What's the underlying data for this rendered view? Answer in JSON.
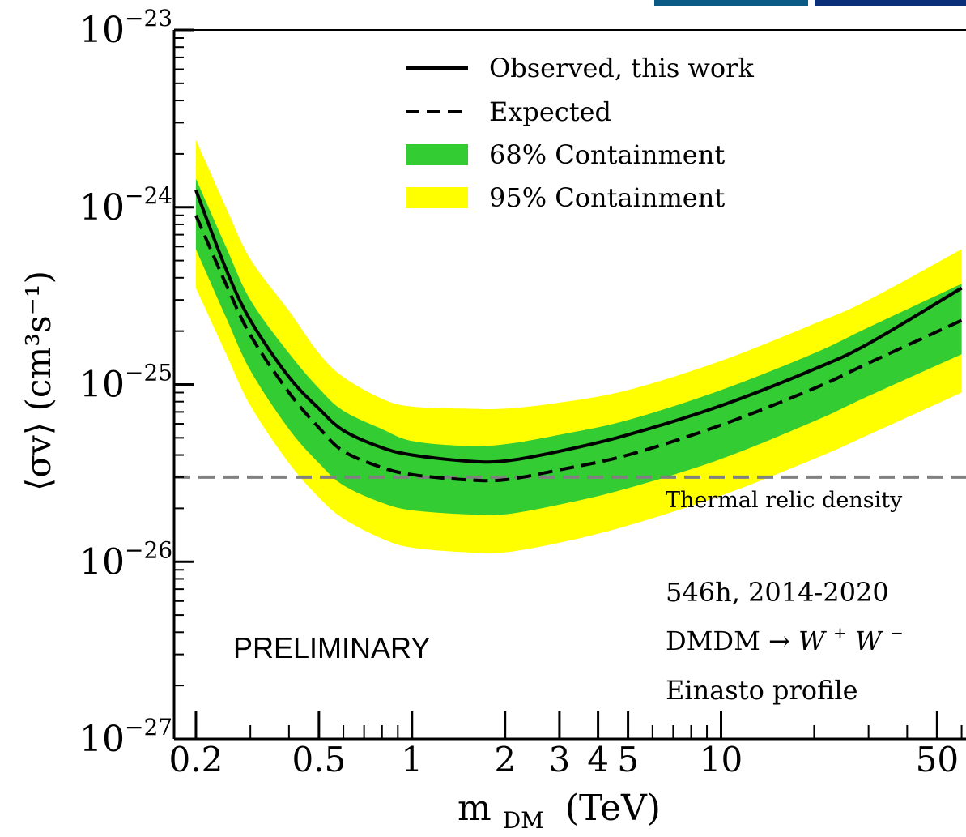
{
  "chart_data": {
    "type": "line",
    "xlabel": "m",
    "xlabel_sub": "DM",
    "xlabel_unit": "(TeV)",
    "ylabel": "⟨σv⟩ (cm³s⁻¹)",
    "xscale": "log",
    "yscale": "log",
    "xlim": [
      0.17,
      62
    ],
    "ylim": [
      1e-27,
      1e-23
    ],
    "x_ticks": [
      0.2,
      0.5,
      1,
      2,
      3,
      4,
      5,
      10,
      50
    ],
    "x_tick_labels": [
      "0.2",
      "0.5",
      "1",
      "2",
      "3",
      "4",
      "5",
      "10",
      "50"
    ],
    "y_ticks": [
      1e-27,
      1e-26,
      1e-25,
      1e-24,
      1e-23
    ],
    "y_tick_labels": [
      {
        "base": "10",
        "exp": "−27"
      },
      {
        "base": "10",
        "exp": "−26"
      },
      {
        "base": "10",
        "exp": "−25"
      },
      {
        "base": "10",
        "exp": "−24"
      },
      {
        "base": "10",
        "exp": "−23"
      }
    ],
    "x": [
      0.2,
      0.25,
      0.3,
      0.4,
      0.5,
      0.6,
      0.8,
      1,
      1.5,
      2,
      3,
      5,
      10,
      20,
      30,
      60
    ],
    "series": [
      {
        "name": "Observed, this work",
        "style": "solid",
        "color": "#000000",
        "values": [
          1.25e-24,
          4.5e-25,
          2.3e-25,
          1.1e-25,
          7.3e-26,
          5.5e-26,
          4.4e-26,
          4e-26,
          3.7e-26,
          3.7e-26,
          4.2e-26,
          5.2e-26,
          7.6e-26,
          1.22e-25,
          1.7e-25,
          3.5e-25
        ]
      },
      {
        "name": "Expected",
        "style": "dashed",
        "color": "#000000",
        "values": [
          9e-25,
          3.7e-25,
          1.9e-25,
          9e-26,
          5.7e-26,
          4.2e-26,
          3.4e-26,
          3.1e-26,
          2.9e-26,
          2.9e-26,
          3.3e-26,
          4e-26,
          5.9e-26,
          9.5e-26,
          1.32e-25,
          2.3e-25
        ]
      }
    ],
    "bands": [
      {
        "name": "95% Containment",
        "color": "#ffff00",
        "upper": [
          2.4e-24,
          1e-24,
          5.1e-25,
          2.6e-25,
          1.5e-25,
          1.1e-25,
          8.3e-26,
          7.5e-26,
          7.3e-26,
          7.3e-26,
          7.9e-26,
          9.3e-26,
          1.36e-25,
          2.2e-25,
          3e-25,
          5.8e-25
        ],
        "lower": [
          3.5e-25,
          1.5e-25,
          7.6e-26,
          3.6e-26,
          2.3e-26,
          1.75e-26,
          1.35e-26,
          1.2e-26,
          1.13e-26,
          1.13e-26,
          1.28e-26,
          1.6e-26,
          2.36e-26,
          3.8e-26,
          5.2e-26,
          9e-26
        ]
      },
      {
        "name": "68% Containment",
        "color": "#33cc33",
        "upper": [
          1.45e-24,
          6e-25,
          3e-25,
          1.5e-25,
          9.5e-26,
          7.1e-26,
          5.6e-26,
          4.8e-26,
          4.5e-26,
          4.6e-26,
          5.2e-26,
          6.3e-26,
          9.3e-26,
          1.5e-25,
          2.1e-25,
          3.7e-25
        ],
        "lower": [
          5.8e-25,
          2.4e-25,
          1.2e-25,
          5.6e-26,
          3.6e-26,
          2.7e-26,
          2.15e-26,
          1.95e-26,
          1.85e-26,
          1.85e-26,
          2.1e-26,
          2.6e-26,
          3.8e-26,
          6.2e-26,
          8.6e-26,
          1.48e-25
        ]
      }
    ],
    "reference_line": {
      "label": "Thermal relic density",
      "y": 3e-26,
      "color": "#808080",
      "style": "dashed"
    },
    "legend": {
      "placement": "top-center",
      "entries": [
        {
          "label": "Observed, this work",
          "kind": "solid"
        },
        {
          "label": "Expected",
          "kind": "dashed"
        },
        {
          "label": "68% Containment",
          "kind": "patch",
          "color": "#33cc33"
        },
        {
          "label": "95% Containment",
          "kind": "patch",
          "color": "#ffff00"
        }
      ]
    },
    "annotations": {
      "exposure": "546h, 2014-2020",
      "channel_prefix": "DMDM → ",
      "channel_main": "W",
      "channel_sup1": "+",
      "channel_main2": "W",
      "channel_sup2": "−",
      "profile": "Einasto profile",
      "preliminary": "PRELIMINARY"
    },
    "grid": false
  }
}
